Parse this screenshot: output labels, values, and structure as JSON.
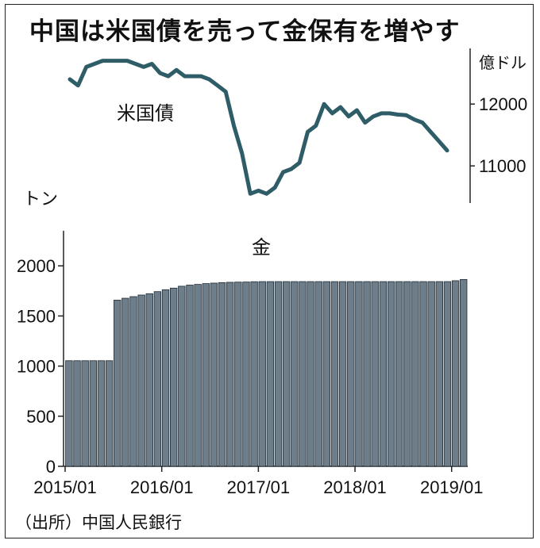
{
  "title": "中国は米国債を売って金保有を増やす",
  "source": "（出所）中国人民銀行",
  "chart_data": [
    {
      "type": "line",
      "series_label": "米国債",
      "unit": "億ドル",
      "y_ticks": [
        12000,
        11000
      ],
      "ylim": [
        10400,
        12900
      ],
      "x_start": "2015/01",
      "color": "#2e5d68",
      "values": [
        12400,
        12300,
        12600,
        12650,
        12700,
        12700,
        12700,
        12700,
        12650,
        12600,
        12650,
        12500,
        12450,
        12550,
        12450,
        12450,
        12450,
        12400,
        12300,
        12200,
        11650,
        11200,
        10550,
        10600,
        10550,
        10650,
        10900,
        10950,
        11050,
        11550,
        11650,
        12000,
        11850,
        11950,
        11800,
        11900,
        11700,
        11800,
        11850,
        11850,
        11830,
        11820,
        11750,
        11700,
        11550,
        11400,
        11250
      ]
    },
    {
      "type": "bar",
      "series_label": "金",
      "unit": "トン",
      "y_ticks": [
        0,
        500,
        1000,
        1500,
        2000
      ],
      "ylim": [
        0,
        2350
      ],
      "x_ticks": [
        "2015/01",
        "2016/01",
        "2017/01",
        "2018/01",
        "2019/01"
      ],
      "color": "#6d7e8a",
      "values": [
        1054,
        1054,
        1054,
        1054,
        1054,
        1054,
        1658,
        1677,
        1693,
        1709,
        1722,
        1743,
        1762,
        1778,
        1797,
        1808,
        1815,
        1823,
        1828,
        1833,
        1836,
        1838,
        1839,
        1842,
        1843,
        1843,
        1843,
        1843,
        1843,
        1843,
        1843,
        1843,
        1843,
        1843,
        1843,
        1843,
        1843,
        1843,
        1843,
        1843,
        1843,
        1843,
        1843,
        1843,
        1843,
        1843,
        1843,
        1843,
        1852,
        1864
      ]
    }
  ]
}
